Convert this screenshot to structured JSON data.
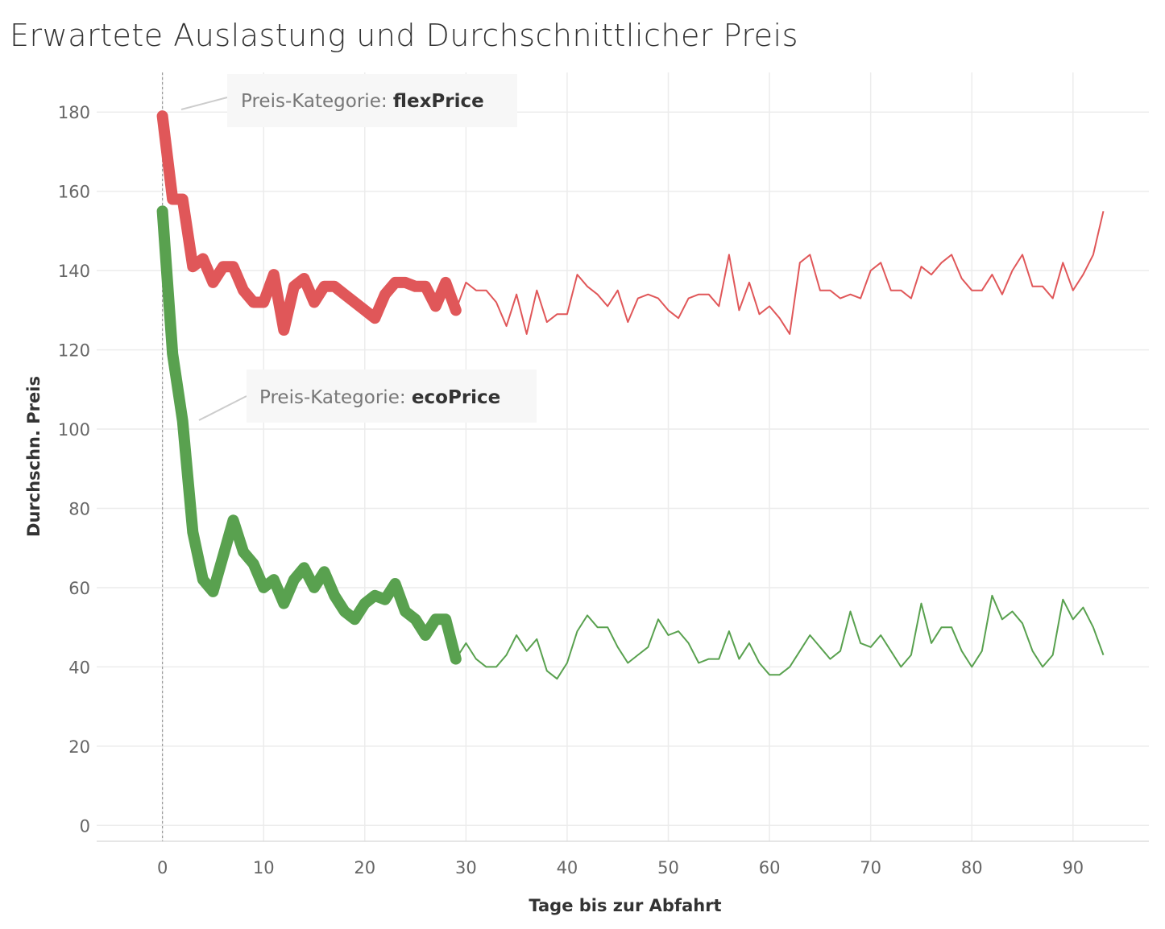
{
  "title": "Erwartete Auslastung und Durchschnittlicher Preis",
  "chart_data": {
    "type": "line",
    "xlabel": "Tage bis zur Abfahrt",
    "ylabel": "Durchschn. Preis",
    "xlim": [
      -6.5,
      97.5
    ],
    "ylim": [
      -4,
      190
    ],
    "x_ticks": [
      0,
      10,
      20,
      30,
      40,
      50,
      60,
      70,
      80,
      90
    ],
    "y_ticks": [
      0,
      20,
      40,
      60,
      80,
      100,
      120,
      140,
      160,
      180
    ],
    "reference_line_x": 0,
    "grid": true,
    "thick_until_x": 29,
    "series": [
      {
        "name": "flexPrice",
        "label_prefix": "Preis-Kategorie: ",
        "label_value": "flexPrice",
        "color": "#e05759",
        "x": [
          0,
          1,
          2,
          3,
          4,
          5,
          6,
          7,
          8,
          9,
          10,
          11,
          12,
          13,
          14,
          15,
          16,
          17,
          18,
          19,
          20,
          21,
          22,
          23,
          24,
          25,
          26,
          27,
          28,
          29,
          30,
          31,
          32,
          33,
          34,
          35,
          36,
          37,
          38,
          39,
          40,
          41,
          42,
          43,
          44,
          45,
          46,
          47,
          48,
          49,
          50,
          51,
          52,
          53,
          54,
          55,
          56,
          57,
          58,
          59,
          60,
          61,
          62,
          63,
          64,
          65,
          66,
          67,
          68,
          69,
          70,
          71,
          72,
          73,
          74,
          75,
          76,
          77,
          78,
          79,
          80,
          81,
          82,
          83,
          84,
          85,
          86,
          87,
          88,
          89,
          90,
          91,
          92,
          93
        ],
        "values": [
          179,
          158,
          158,
          141,
          143,
          137,
          141,
          141,
          135,
          132,
          132,
          139,
          125,
          136,
          138,
          132,
          136,
          136,
          134,
          132,
          130,
          128,
          134,
          137,
          137,
          136,
          136,
          131,
          137,
          130,
          137,
          135,
          135,
          132,
          126,
          134,
          124,
          135,
          127,
          129,
          129,
          139,
          136,
          134,
          131,
          135,
          127,
          133,
          134,
          133,
          130,
          128,
          133,
          134,
          134,
          131,
          144,
          130,
          137,
          129,
          131,
          128,
          124,
          142,
          144,
          135,
          135,
          133,
          134,
          133,
          140,
          142,
          135,
          135,
          133,
          141,
          139,
          142,
          144,
          138,
          135,
          135,
          139,
          134,
          140,
          144,
          136,
          136,
          133,
          142,
          135,
          139,
          144,
          155
        ]
      },
      {
        "name": "ecoPrice",
        "label_prefix": "Preis-Kategorie: ",
        "label_value": "ecoPrice",
        "color": "#59a14f",
        "x": [
          0,
          1,
          2,
          3,
          4,
          5,
          6,
          7,
          8,
          9,
          10,
          11,
          12,
          13,
          14,
          15,
          16,
          17,
          18,
          19,
          20,
          21,
          22,
          23,
          24,
          25,
          26,
          27,
          28,
          29,
          30,
          31,
          32,
          33,
          34,
          35,
          36,
          37,
          38,
          39,
          40,
          41,
          42,
          43,
          44,
          45,
          46,
          47,
          48,
          49,
          50,
          51,
          52,
          53,
          54,
          55,
          56,
          57,
          58,
          59,
          60,
          61,
          62,
          63,
          64,
          65,
          66,
          67,
          68,
          69,
          70,
          71,
          72,
          73,
          74,
          75,
          76,
          77,
          78,
          79,
          80,
          81,
          82,
          83,
          84,
          85,
          86,
          87,
          88,
          89,
          90,
          91,
          92,
          93
        ],
        "values": [
          155,
          119,
          102,
          74,
          62,
          59,
          68,
          77,
          69,
          66,
          60,
          62,
          56,
          62,
          65,
          60,
          64,
          58,
          54,
          52,
          56,
          58,
          57,
          61,
          54,
          52,
          48,
          52,
          52,
          42,
          46,
          42,
          40,
          40,
          43,
          48,
          44,
          47,
          39,
          37,
          41,
          49,
          53,
          50,
          50,
          45,
          41,
          43,
          45,
          52,
          48,
          49,
          46,
          41,
          42,
          42,
          49,
          42,
          46,
          41,
          38,
          38,
          40,
          44,
          48,
          45,
          42,
          44,
          54,
          46,
          45,
          48,
          44,
          40,
          43,
          56,
          46,
          50,
          50,
          44,
          40,
          44,
          58,
          52,
          54,
          51,
          44,
          40,
          43,
          57,
          52,
          55,
          50,
          43
        ]
      }
    ]
  }
}
